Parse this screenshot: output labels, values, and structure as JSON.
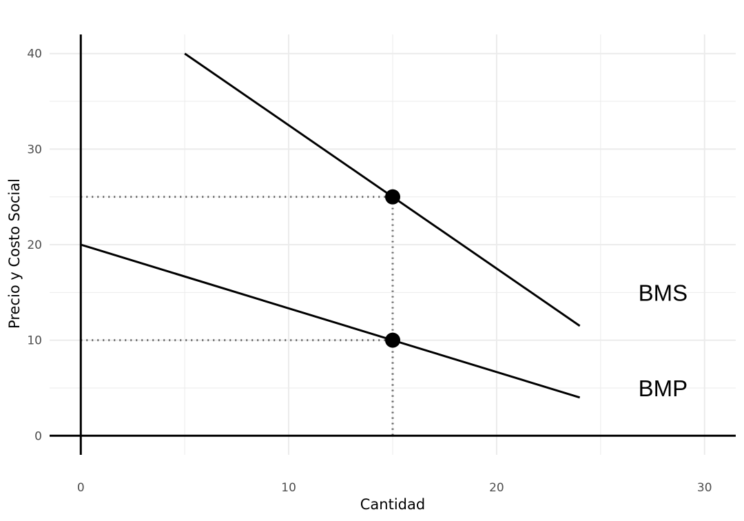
{
  "chart_data": {
    "type": "line",
    "title": "",
    "xlabel": "Cantidad",
    "ylabel": "Precio y Costo Social",
    "xlim": [
      -1.5,
      31.5
    ],
    "ylim": [
      -2,
      42
    ],
    "x_ticks": [
      0,
      10,
      20,
      30
    ],
    "y_ticks": [
      0,
      10,
      20,
      30,
      40
    ],
    "grid": true,
    "legend": "none",
    "series": [
      {
        "points": [
          [
            5,
            40
          ],
          [
            24,
            11.5
          ]
        ],
        "color": "#000000"
      },
      {
        "points": [
          [
            0,
            20
          ],
          [
            24,
            4
          ]
        ],
        "color": "#000000"
      }
    ],
    "reference_points": [
      {
        "x": 15,
        "y": 25
      },
      {
        "x": 15,
        "y": 10
      }
    ],
    "annotations": [
      {
        "text": "BMS",
        "x": 28,
        "y": 15
      },
      {
        "text": "BMP",
        "x": 28,
        "y": 5
      }
    ],
    "colors": {
      "grid": "#ebebeb",
      "guide": "#666666",
      "ink": "#000000",
      "tick_text": "#4d4d4d"
    }
  }
}
